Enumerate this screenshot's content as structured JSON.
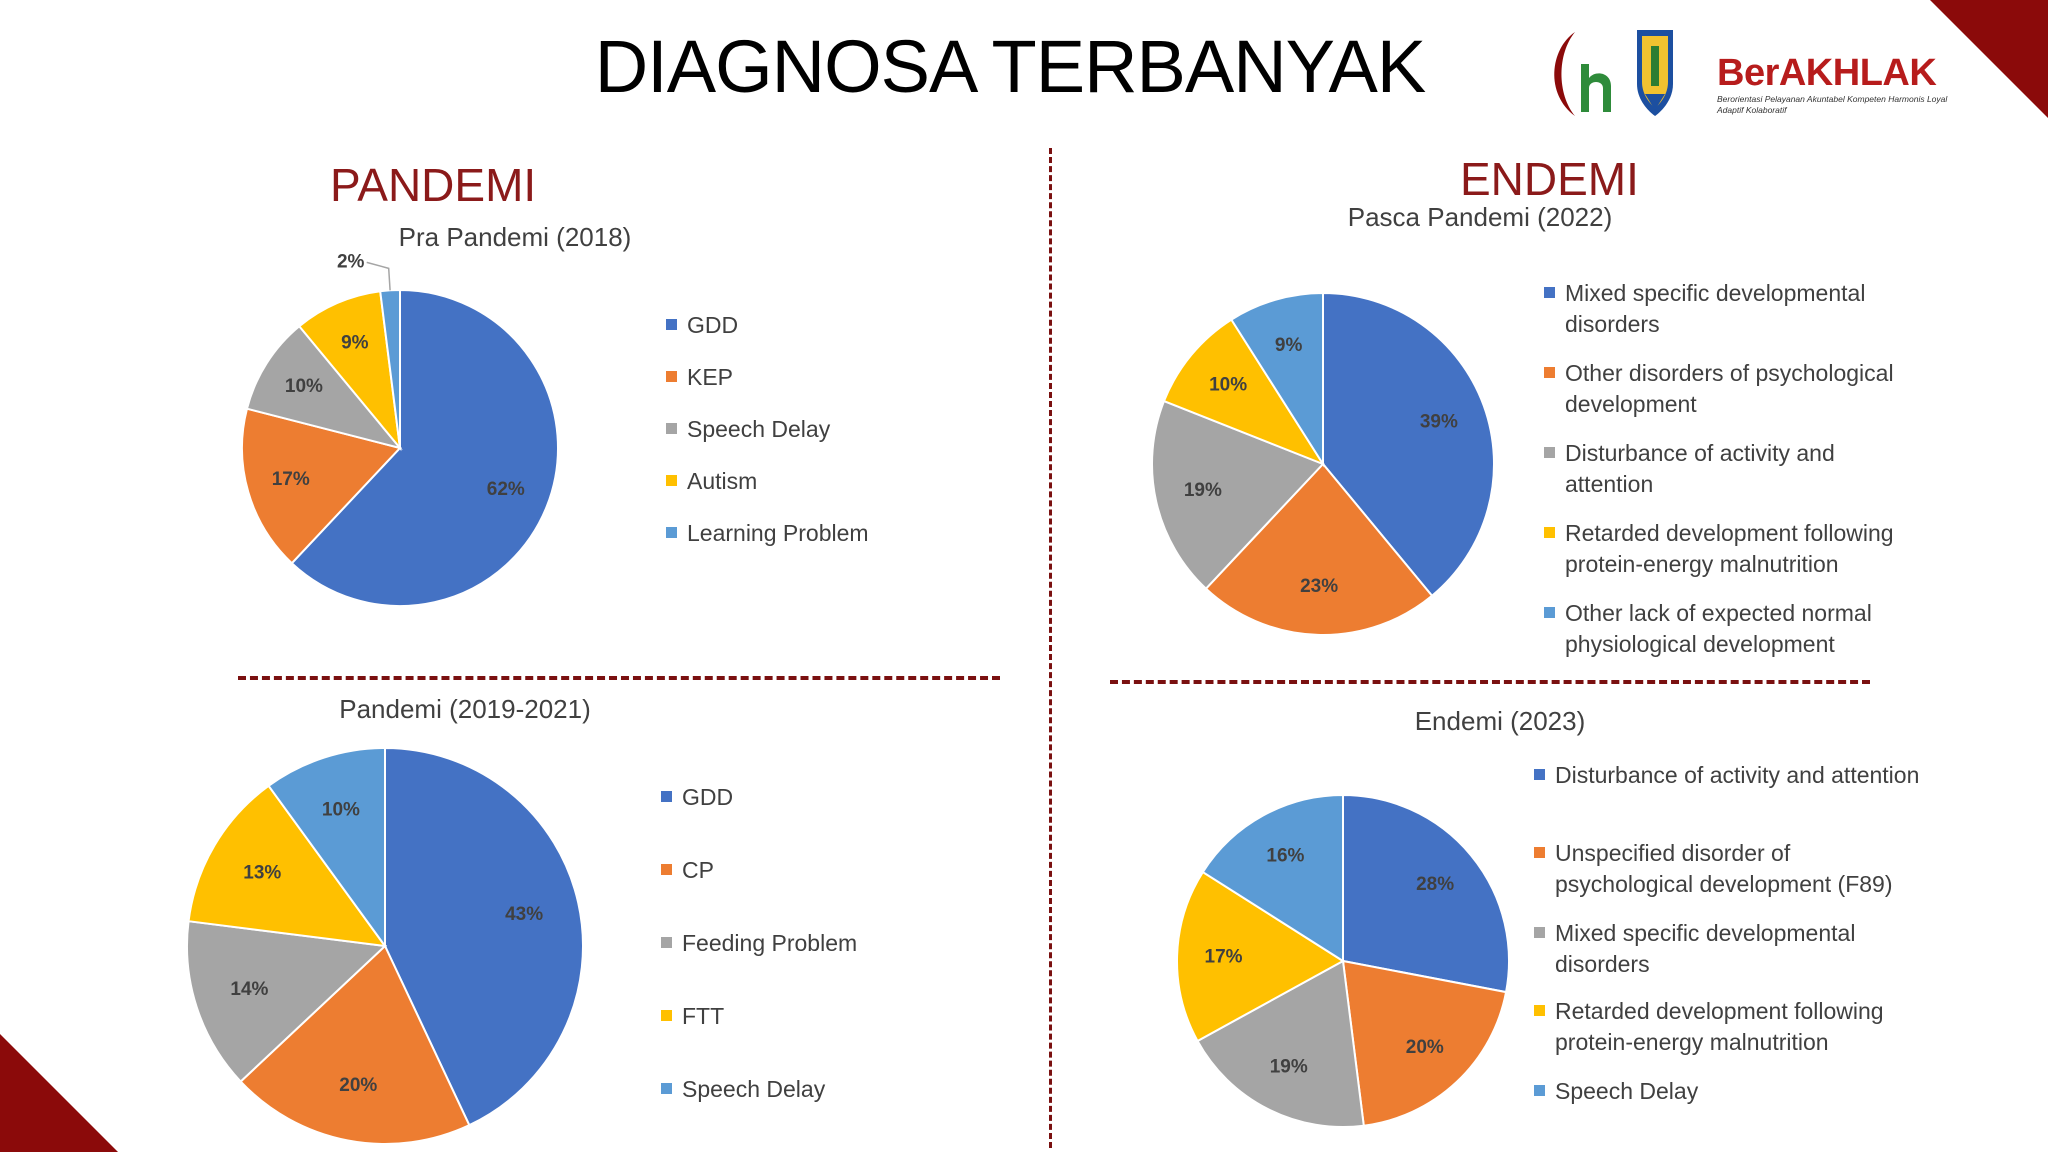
{
  "title": "DIAGNOSA TERBANYAK",
  "logo": {
    "name": "BerAKHLAK",
    "tagline": "Berorientasi Pelayanan Akuntabel Kompeten Harmonis Loyal Adaptif Kolaboratif"
  },
  "sections": {
    "left": "PANDEMI",
    "right": "ENDEMI"
  },
  "colors": {
    "blue": "#4472C4",
    "orange": "#ED7D31",
    "gray": "#A5A5A5",
    "yellow": "#FFC000",
    "lightblue": "#5B9BD5",
    "accent": "#8b1a1a"
  },
  "chart_data": [
    {
      "type": "pie",
      "title": "Pra Pandemi (2018)",
      "categories": [
        "GDD",
        "KEP",
        "Speech Delay",
        "Autism",
        "Learning Problem"
      ],
      "values": [
        62,
        17,
        10,
        9,
        2
      ],
      "labels": [
        "62%",
        "17%",
        "10%",
        "9%",
        "2%"
      ],
      "colors": [
        "#4472C4",
        "#ED7D31",
        "#A5A5A5",
        "#FFC000",
        "#5B9BD5"
      ],
      "legend": "right"
    },
    {
      "type": "pie",
      "title": "Pandemi (2019-2021)",
      "categories": [
        "GDD",
        "CP",
        "Feeding Problem",
        "FTT",
        "Speech Delay"
      ],
      "values": [
        43,
        20,
        14,
        13,
        10
      ],
      "labels": [
        "43%",
        "20%",
        "14%",
        "13%",
        "10%"
      ],
      "colors": [
        "#4472C4",
        "#ED7D31",
        "#A5A5A5",
        "#FFC000",
        "#5B9BD5"
      ],
      "legend": "right"
    },
    {
      "type": "pie",
      "title": "Pasca Pandemi (2022)",
      "categories": [
        "Mixed specific developmental disorders",
        "Other disorders of psychological development",
        "Disturbance of activity and attention",
        "Retarded development following protein-energy malnutrition",
        "Other lack of expected normal physiological development"
      ],
      "values": [
        39,
        23,
        19,
        10,
        9
      ],
      "labels": [
        "39%",
        "23%",
        "19%",
        "10%",
        "9%"
      ],
      "colors": [
        "#4472C4",
        "#ED7D31",
        "#A5A5A5",
        "#FFC000",
        "#5B9BD5"
      ],
      "legend": "right"
    },
    {
      "type": "pie",
      "title": "Endemi (2023)",
      "categories": [
        "Disturbance of activity and attention",
        "Unspecified disorder of psychological development (F89)",
        "Mixed specific developmental disorders",
        "Retarded development following protein-energy malnutrition",
        "Speech Delay"
      ],
      "values": [
        28,
        20,
        19,
        17,
        16
      ],
      "labels": [
        "28%",
        "20%",
        "19%",
        "17%",
        "16%"
      ],
      "colors": [
        "#4472C4",
        "#ED7D31",
        "#A5A5A5",
        "#FFC000",
        "#5B9BD5"
      ],
      "legend": "right"
    }
  ]
}
